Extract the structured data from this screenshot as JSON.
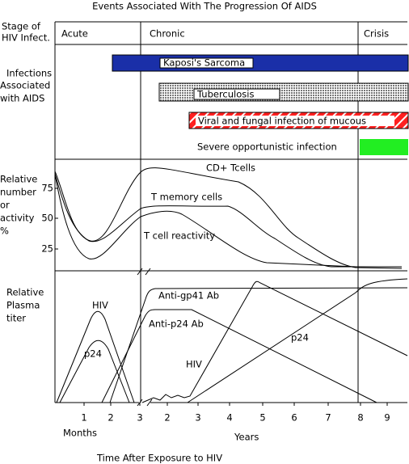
{
  "title": "Events Associated With The Progression Of AIDS",
  "stage": {
    "label": [
      "Stage of",
      "HIV Infect."
    ],
    "phases": [
      "Acute",
      "Chronic",
      "Crisis"
    ]
  },
  "infections": {
    "label": [
      "Infections",
      "Associated",
      "with AIDS"
    ],
    "bars": [
      "Kaposi's Sarcoma",
      "Tuberculosis",
      "Viral and fungal infection of mucous",
      "Severe opportunistic infection"
    ]
  },
  "cells": {
    "label": [
      "Relative",
      "number",
      "or",
      "activity",
      "%"
    ],
    "ticks": [
      "75",
      "50",
      "25"
    ],
    "curves": [
      "CD+ Tcells",
      "T memory cells",
      "T cell reactivity"
    ]
  },
  "plasma": {
    "label": [
      "Relative",
      "Plasma",
      "titer"
    ],
    "curves": [
      "HIV",
      "p24",
      "Anti-gp41 Ab",
      "Anti-p24 Ab",
      "HIV",
      "p24"
    ]
  },
  "x_axis": {
    "month_ticks": [
      "1",
      "2",
      "3"
    ],
    "year_ticks": [
      "2",
      "3",
      "4",
      "5",
      "6",
      "7",
      "8",
      "9"
    ],
    "months": "Months",
    "years": "Years",
    "title": "Time After Exposure to HIV"
  }
}
